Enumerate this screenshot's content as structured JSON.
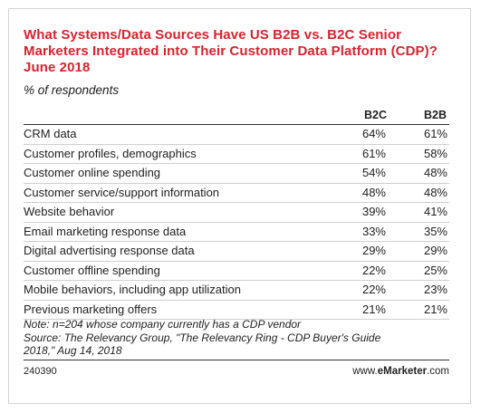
{
  "chart_data": {
    "type": "table",
    "title": "What Systems/Data Sources Have US B2B vs. B2C Senior Marketers Integrated into Their Customer Data Platform (CDP)? June 2018",
    "subtitle": "% of respondents",
    "columns": [
      "B2C",
      "B2B"
    ],
    "rows": [
      {
        "label": "CRM data",
        "b2c": "64%",
        "b2b": "61%"
      },
      {
        "label": "Customer profiles, demographics",
        "b2c": "61%",
        "b2b": "58%"
      },
      {
        "label": "Customer online spending",
        "b2c": "54%",
        "b2b": "48%"
      },
      {
        "label": "Customer service/support information",
        "b2c": "48%",
        "b2b": "48%"
      },
      {
        "label": "Website behavior",
        "b2c": "39%",
        "b2b": "41%"
      },
      {
        "label": "Email marketing response data",
        "b2c": "33%",
        "b2b": "35%"
      },
      {
        "label": "Digital advertising response data",
        "b2c": "29%",
        "b2b": "29%"
      },
      {
        "label": "Customer offline spending",
        "b2c": "22%",
        "b2b": "25%"
      },
      {
        "label": "Mobile behaviors, including app utilization",
        "b2c": "22%",
        "b2b": "23%"
      },
      {
        "label": "Previous marketing offers",
        "b2c": "21%",
        "b2b": "21%"
      }
    ],
    "series": [
      {
        "name": "B2C",
        "values": [
          64,
          61,
          54,
          48,
          39,
          33,
          29,
          22,
          22,
          21
        ]
      },
      {
        "name": "B2B",
        "values": [
          61,
          58,
          48,
          48,
          41,
          35,
          29,
          25,
          23,
          21
        ]
      }
    ]
  },
  "notes": {
    "line1": "Note: n=204 whose company currently has a CDP vendor",
    "line2": "Source: The Relevancy Group, \"The Relevancy Ring - CDP Buyer's Guide",
    "line3": "2018,\" Aug 14, 2018"
  },
  "footer": {
    "chart_id": "240390",
    "brand_prefix": "www.",
    "brand_name": "eMarketer",
    "brand_suffix": ".com"
  },
  "colors": {
    "title": "#d9232e",
    "rule": "#333333",
    "row_divider": "#cfcfcf"
  }
}
